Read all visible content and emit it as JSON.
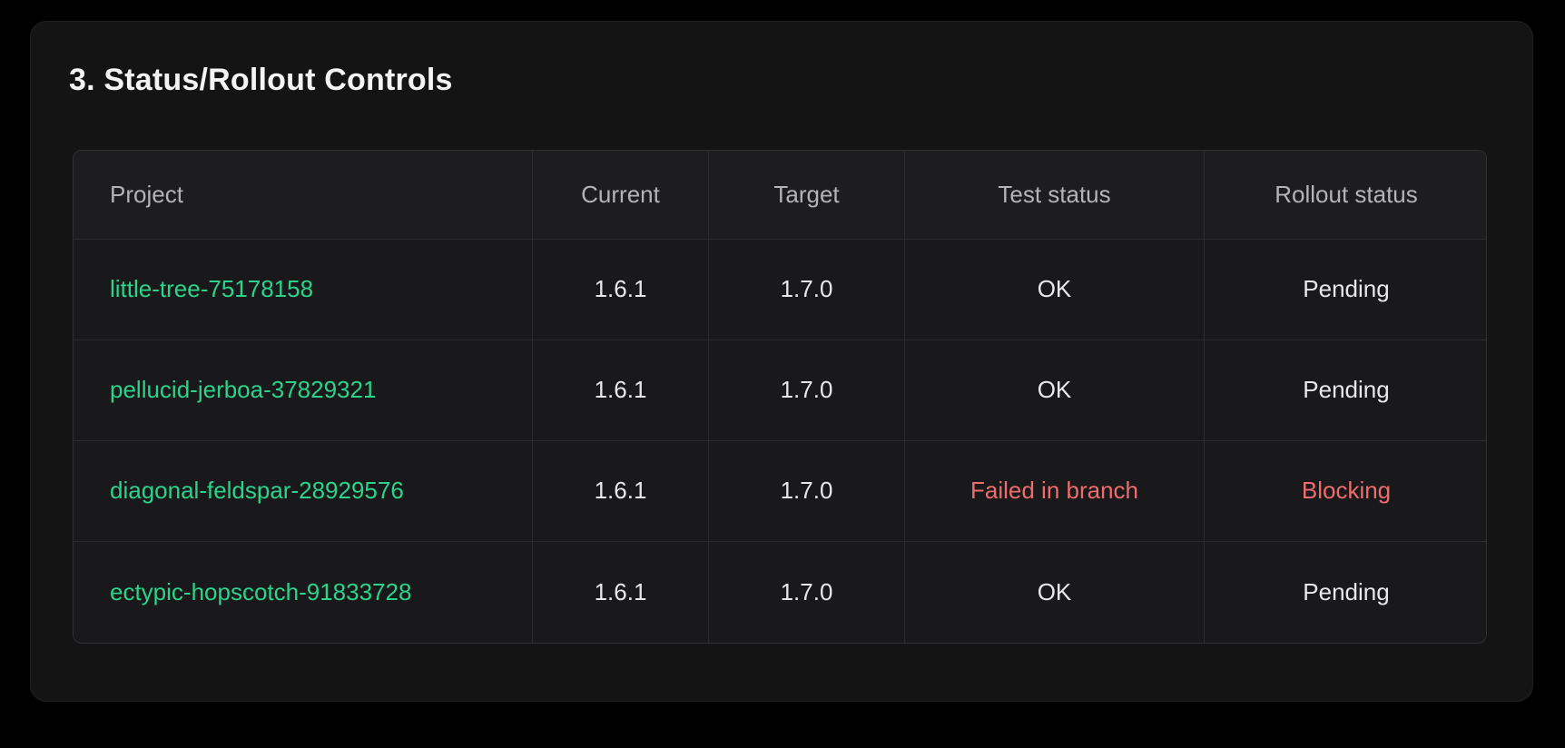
{
  "panel": {
    "title": "3. Status/Rollout Controls"
  },
  "table": {
    "columns": [
      {
        "label": "Project"
      },
      {
        "label": "Current"
      },
      {
        "label": "Target"
      },
      {
        "label": "Test status"
      },
      {
        "label": "Rollout status"
      }
    ],
    "rows": [
      {
        "project": "little-tree-75178158",
        "current": "1.6.1",
        "target": "1.7.0",
        "test_status": "OK",
        "rollout_status": "Pending"
      },
      {
        "project": "pellucid-jerboa-37829321",
        "current": "1.6.1",
        "target": "1.7.0",
        "test_status": "OK",
        "rollout_status": "Pending"
      },
      {
        "project": "diagonal-feldspar-28929576",
        "current": "1.6.1",
        "target": "1.7.0",
        "test_status": "Failed in branch",
        "rollout_status": "Blocking"
      },
      {
        "project": "ectypic-hopscotch-91833728",
        "current": "1.6.1",
        "target": "1.7.0",
        "test_status": "OK",
        "rollout_status": "Pending"
      }
    ]
  },
  "colors": {
    "project_link": "#2bd38b",
    "status_error": "#ee6c6c",
    "status_normal": "#e8e8ea"
  }
}
